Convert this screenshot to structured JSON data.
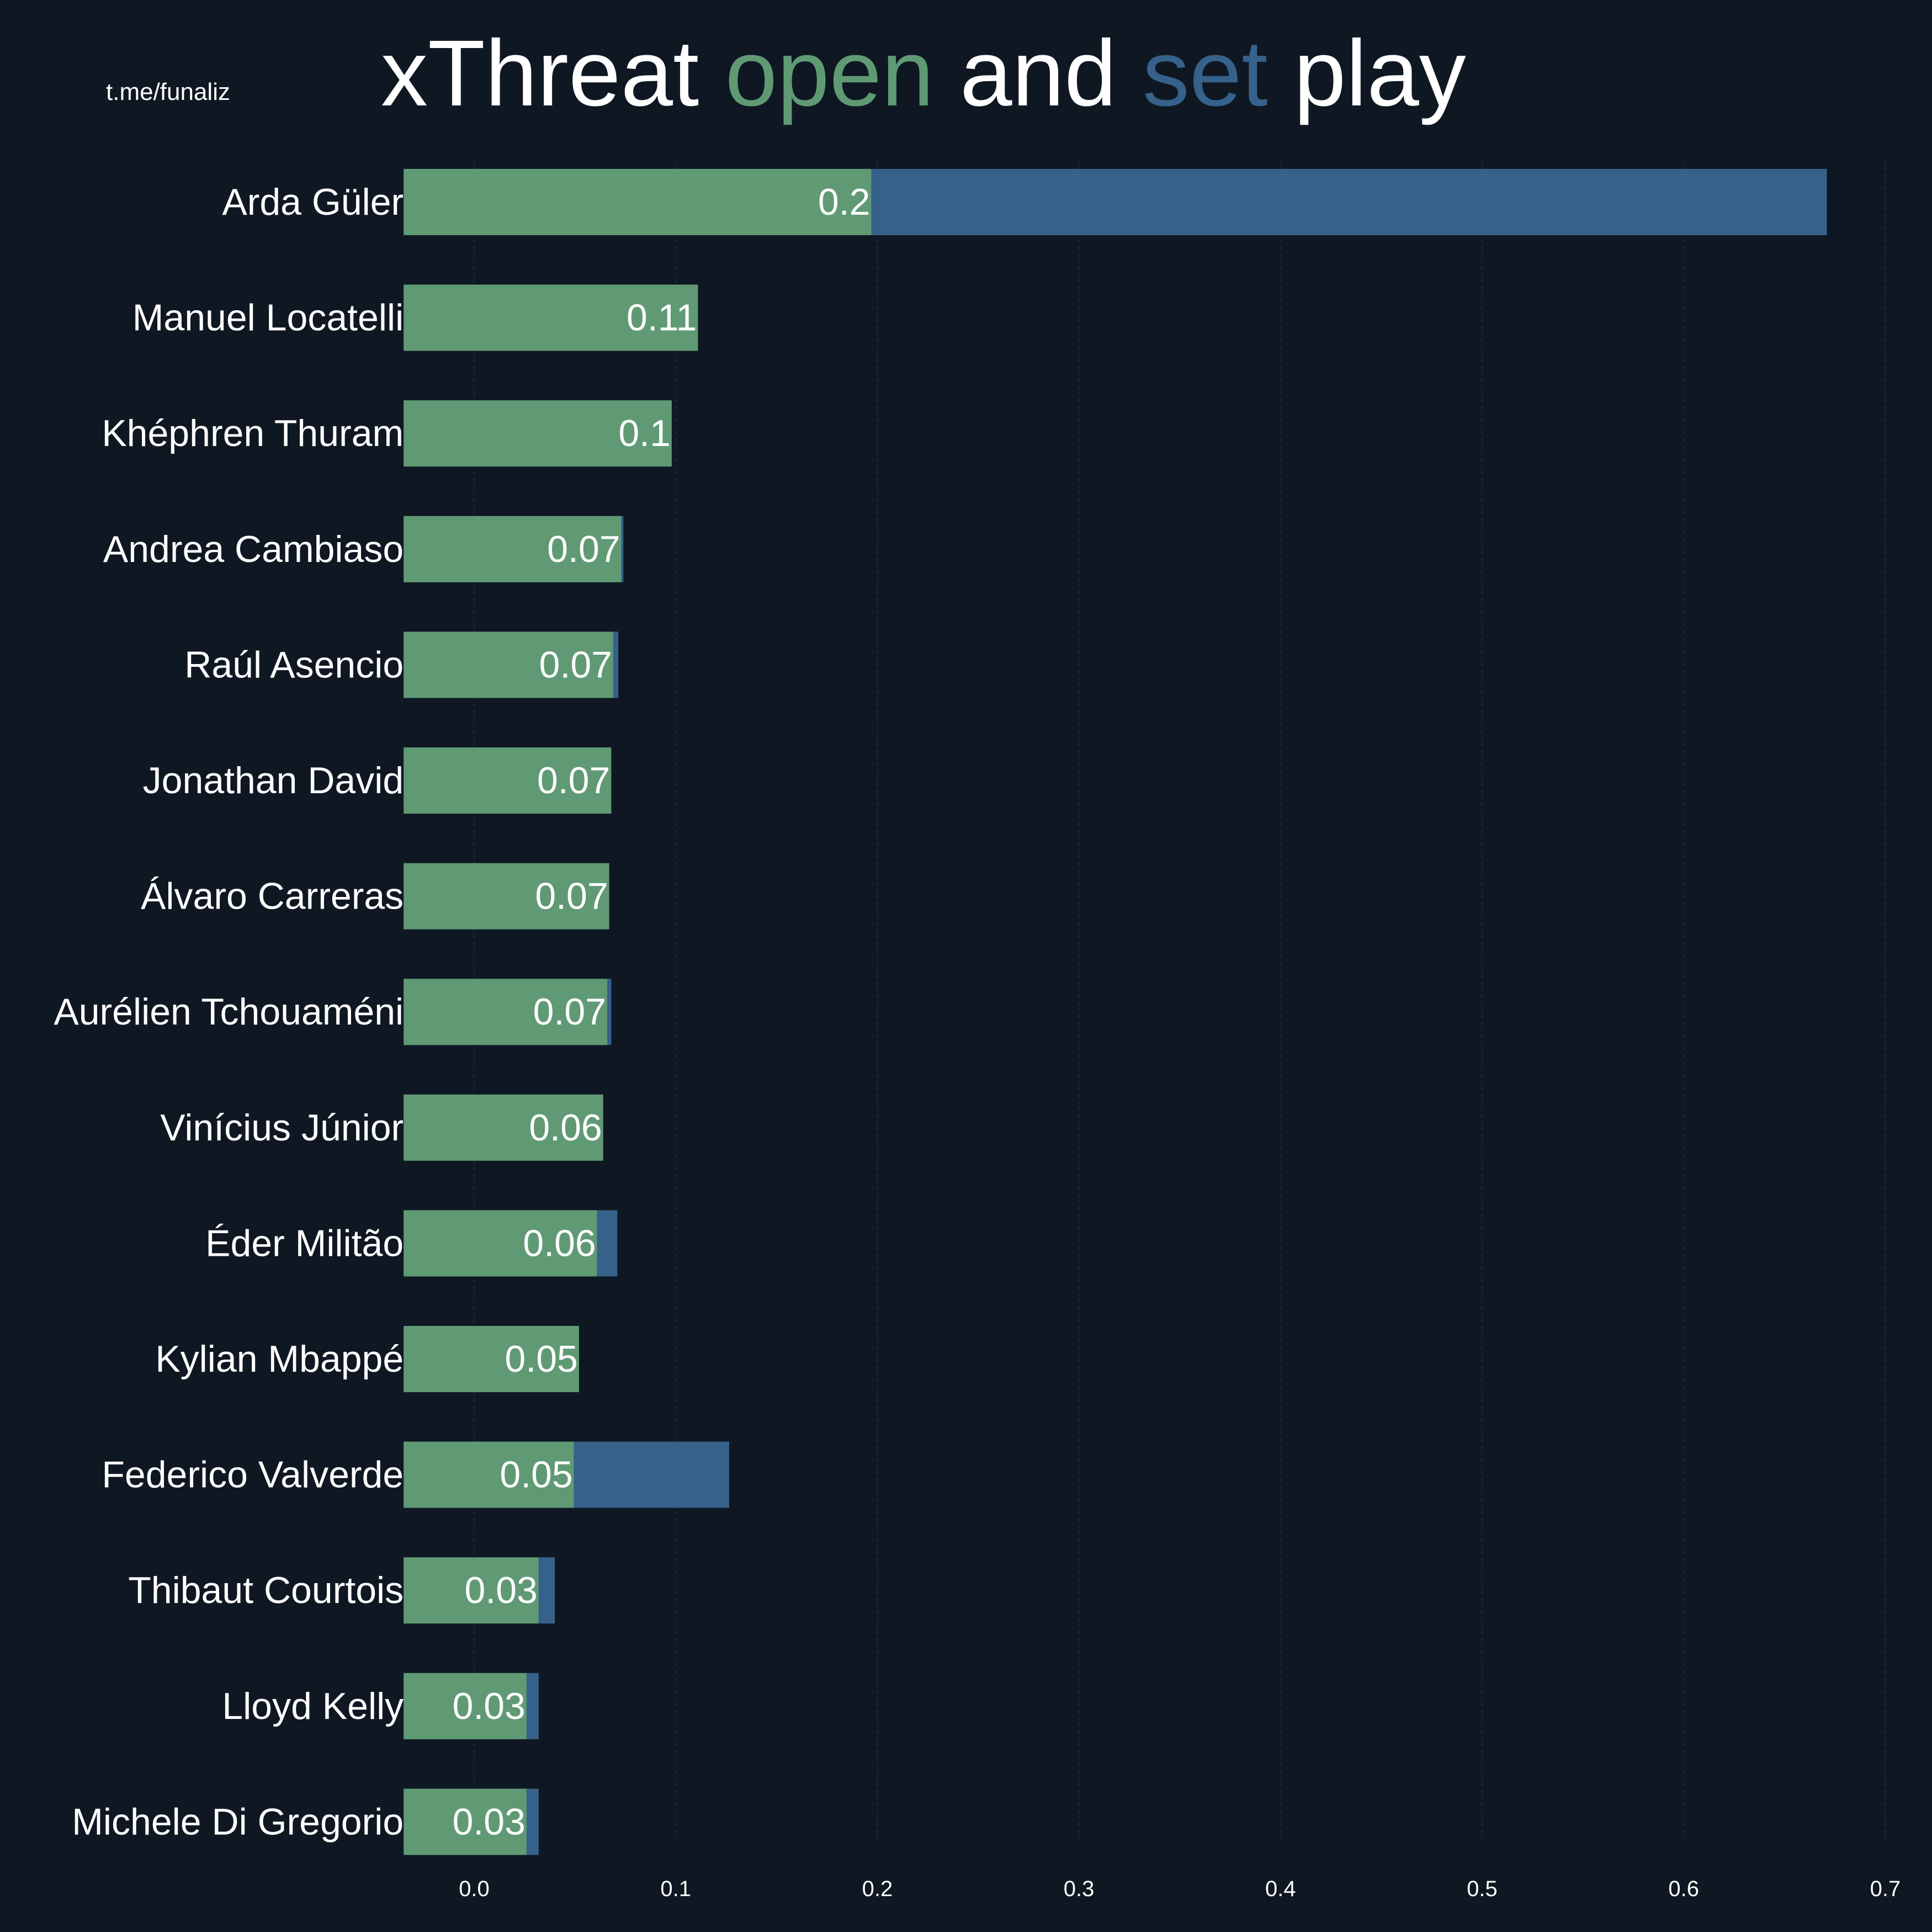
{
  "watermark": "t.me/funaliz",
  "title": {
    "part1": "xThreat ",
    "open": "open",
    "part2": " and ",
    "set": "set",
    "part3": " play"
  },
  "colors": {
    "open": "#5f9a75",
    "set": "#36618a",
    "background": "#0f1822"
  },
  "chart_data": {
    "type": "bar",
    "orientation": "horizontal",
    "stacked": true,
    "title": "xThreat open and set play",
    "xlim": [
      -0.035,
      0.72
    ],
    "xticks": [
      "0.0",
      "0.1",
      "0.2",
      "0.3",
      "0.4",
      "0.5",
      "0.6",
      "0.7"
    ],
    "xtick_values": [
      0,
      0.1,
      0.2,
      0.3,
      0.4,
      0.5,
      0.6,
      0.7
    ],
    "categories": [
      "Arda Güler",
      "Manuel Locatelli",
      "Khéphren Thuram",
      "Andrea Cambiaso",
      "Raúl Asencio",
      "Jonathan David",
      "Álvaro Carreras",
      "Aurélien Tchouaméni",
      "Vinícius Júnior",
      "Éder Militão",
      "Kylian Mbappé",
      "Federico Valverde",
      "Thibaut Courtois",
      "Lloyd Kelly",
      "Michele Di Gregorio"
    ],
    "series": [
      {
        "name": "open",
        "values": [
          0.197,
          0.111,
          0.098,
          0.073,
          0.069,
          0.068,
          0.067,
          0.066,
          0.064,
          0.061,
          0.052,
          0.0495,
          0.032,
          0.026,
          0.026
        ]
      },
      {
        "name": "set",
        "values": [
          0.474,
          0,
          0,
          0.001,
          0.0025,
          0,
          0,
          0.002,
          0,
          0.01,
          0,
          0.077,
          0.008,
          0.006,
          0.006
        ]
      }
    ],
    "labels": [
      "0.2",
      "0.11",
      "0.1",
      "0.07",
      "0.07",
      "0.07",
      "0.07",
      "0.07",
      "0.06",
      "0.06",
      "0.05",
      "0.05",
      "0.03",
      "0.03",
      "0.03"
    ]
  }
}
